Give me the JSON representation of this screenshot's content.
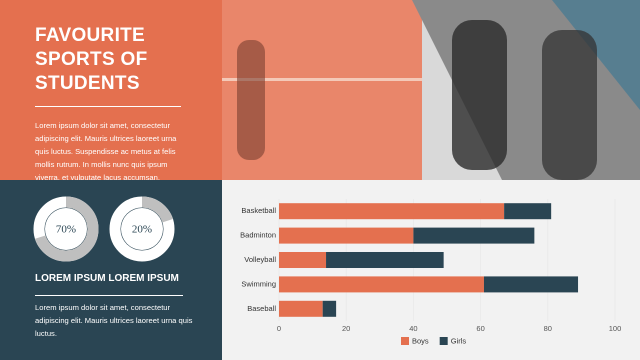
{
  "title": "FAVOURITE SPORTS OF STUDENTS",
  "intro": "Lorem ipsum dolor sit amet, consectetur adipiscing elit. Mauris ultrices laoreet urna quis luctus. Suspendisse ac metus at felis mollis rutrum. In mollis nunc quis ipsum viverra, et vulputate lacus accumsan.",
  "stats": {
    "values": [
      70,
      20
    ],
    "value_labels": [
      "70%",
      "20%"
    ],
    "max": 100
  },
  "subheading": "LOREM IPSUM LOREM IPSUM",
  "body": "Lorem ipsum dolor sit amet, consectetur adipiscing elit. Mauris ultrices laoreet urna quis luctus.",
  "chart_data": {
    "type": "bar",
    "orientation": "horizontal",
    "stacked": true,
    "categories": [
      "Basketball",
      "Badminton",
      "Volleyball",
      "Swimming",
      "Baseball"
    ],
    "series": [
      {
        "name": "Boys",
        "color": "#e4704f",
        "values": [
          67,
          40,
          14,
          61,
          13
        ]
      },
      {
        "name": "Girls",
        "color": "#2a4553",
        "values": [
          14,
          36,
          35,
          28,
          4
        ]
      }
    ],
    "xlim": [
      0,
      100
    ],
    "xticks": [
      0,
      20,
      40,
      60,
      80,
      100
    ],
    "grid": true,
    "legend": "bottom"
  }
}
